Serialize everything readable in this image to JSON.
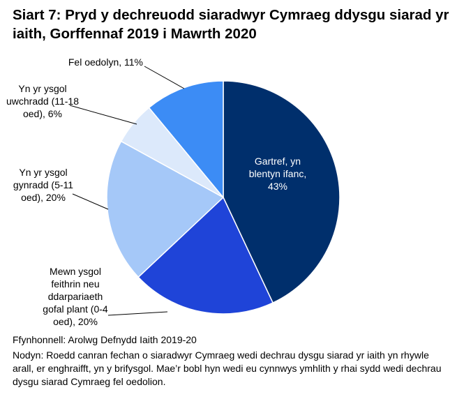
{
  "chart_data": {
    "type": "pie",
    "title": "Siart 7: Pryd y dechreuodd siaradwyr Cymraeg ddysgu siarad yr iaith, Gorffennaf 2019 i Mawrth 2020",
    "categories": [
      "Gartref, yn blentyn ifanc, 43%",
      "Mewn ysgol feithrin neu ddarpariaeth gofal plant (0-4 oed), 20%",
      "Yn yr ysgol gynradd (5-11 oed), 20%",
      "Yn yr ysgol uwchradd (11-18 oed), 6%",
      "Fel oedolyn, 11%"
    ],
    "values": [
      43,
      20,
      20,
      6,
      11
    ],
    "colors": [
      "#002f6c",
      "#1f44d8",
      "#a5c8f8",
      "#dce9fb",
      "#3c8cf5"
    ],
    "source": "Ffynhonnell: Arolwg Defnydd Iaith 2019-20",
    "note": "Nodyn: Roedd canran fechan o siaradwyr Cymraeg wedi dechrau dysgu siarad yr iaith yn rhywle arall, er enghraifft, yn y brifysgol. Mae’r bobl hyn wedi eu cynnwys ymhlith y rhai sydd wedi dechrau dysgu siarad Cymraeg fel oedolion."
  }
}
